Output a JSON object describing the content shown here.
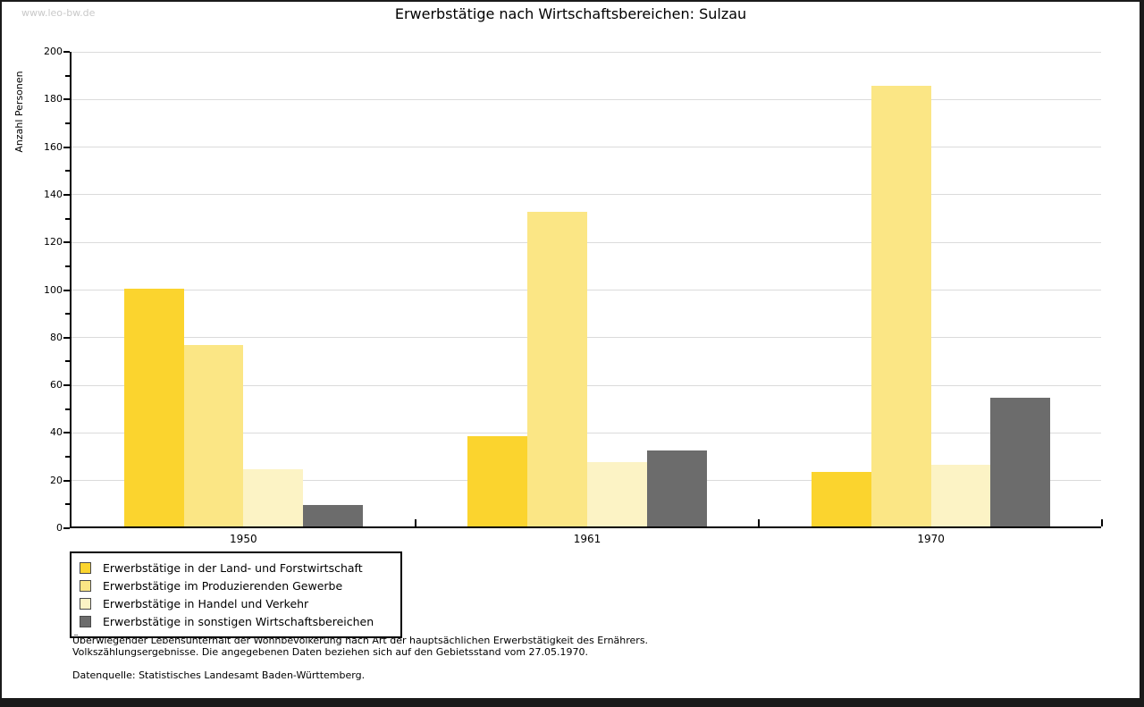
{
  "watermark": "www.leo-bw.de",
  "chart_data": {
    "type": "bar",
    "title": "Erwerbstätige nach Wirtschaftsbereichen: Sulzau",
    "ylabel": "Anzahl Personen",
    "xlabel": "",
    "ylim": [
      0,
      200
    ],
    "ytick_step": 20,
    "yminor_step": 10,
    "grid": true,
    "legend_position": "bottom-left",
    "categories": [
      "1950",
      "1961",
      "1970"
    ],
    "series": [
      {
        "name": "Erwerbstätige in der Land- und Forstwirtschaft",
        "color": "#fbd42e",
        "values": [
          100,
          38,
          23
        ]
      },
      {
        "name": "Erwerbstätige im Produzierenden Gewerbe",
        "color": "#fbe685",
        "values": [
          76,
          132,
          185
        ]
      },
      {
        "name": "Erwerbstätige in Handel und Verkehr",
        "color": "#fcf3c5",
        "values": [
          24,
          27,
          26
        ]
      },
      {
        "name": "Erwerbstätige in sonstigen Wirtschaftsbereichen",
        "color": "#6c6c6c",
        "values": [
          9,
          32,
          54
        ]
      }
    ]
  },
  "footnotes": {
    "line1": "Überwiegender Lebensunterhalt der Wohnbevölkerung nach Art der hauptsächlichen Erwerbstätigkeit des Ernährers.",
    "line2": "Volkszählungsergebnisse. Die angegebenen Daten beziehen sich auf den Gebietsstand vom 27.05.1970.",
    "source": "Datenquelle: Statistisches Landesamt Baden-Württemberg."
  },
  "colors": {
    "grid": "#dbdbdb",
    "axis": "#000000",
    "watermark": "#c9c9c9"
  }
}
